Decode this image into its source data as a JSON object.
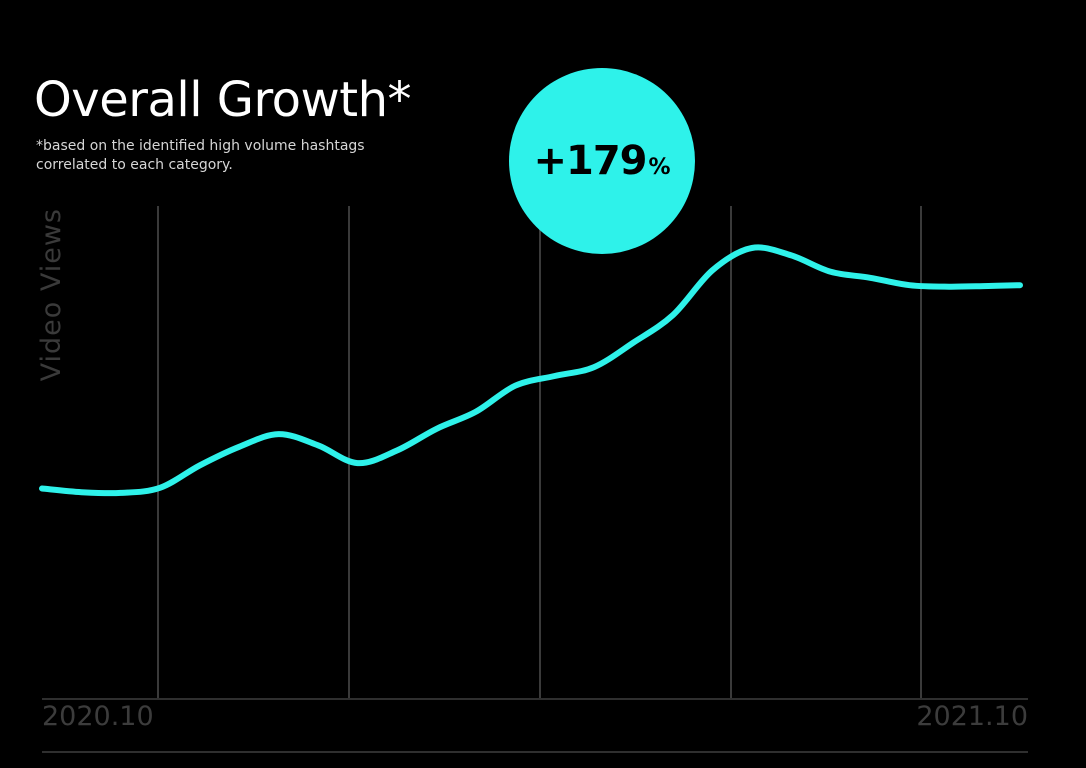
{
  "title": "Overall Growth*",
  "footnote_line1": "*based on the identified high volume hashtags",
  "footnote_line2": "correlated to each category.",
  "badge": {
    "value": "+179",
    "unit": "%"
  },
  "colors": {
    "line": "#2ef2ea",
    "badge": "#2ef2ea",
    "grid": "#3a3a3a",
    "background": "#000000"
  },
  "chart_data": {
    "type": "line",
    "title": "Overall Growth*",
    "ylabel": "Video Views",
    "xlabel": "",
    "x_tick_labels": [
      "2020.10",
      "2021.10"
    ],
    "x_range": [
      0,
      12.4
    ],
    "ylim": [
      0,
      450
    ],
    "grid": "vertical",
    "series": [
      {
        "x": [
          0,
          0.5,
          1,
          1.5,
          2,
          2.5,
          3,
          3.5,
          4,
          4.5,
          5,
          5.5,
          6,
          6.5,
          7,
          7.5,
          8,
          8.5,
          9,
          9.5,
          10,
          10.5,
          11,
          11.5,
          12,
          12.4
        ],
        "values": [
          127,
          122,
          121,
          128,
          158,
          183,
          200,
          185,
          161,
          178,
          207,
          230,
          265,
          278,
          290,
          323,
          360,
          420,
          450,
          440,
          418,
          410,
          400,
          398,
          399,
          400
        ]
      }
    ]
  }
}
